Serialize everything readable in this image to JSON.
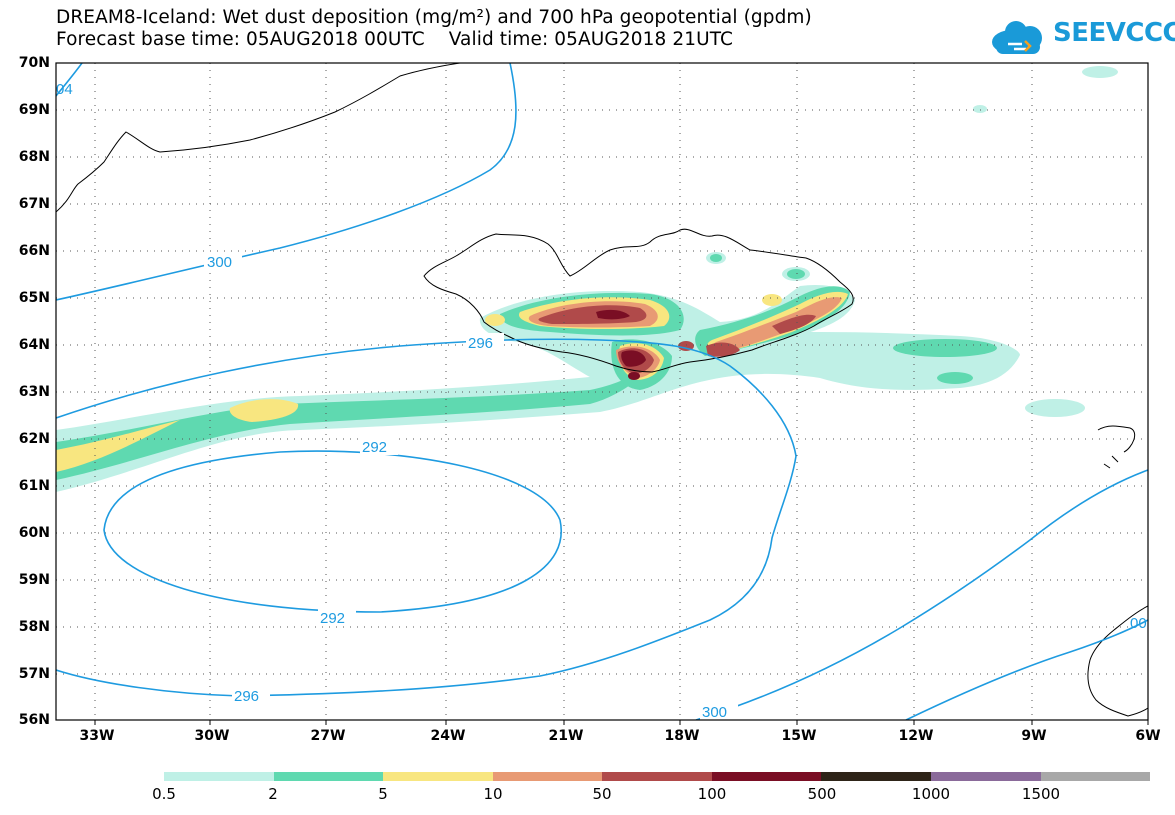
{
  "header": {
    "title_line1": "DREAM8-Iceland: Wet dust deposition (mg/m²) and 700 hPa geopotential (gpdm)",
    "title_line2": "Forecast base time: 05AUG2018 00UTC    Valid time: 05AUG2018 21UTC"
  },
  "logo": {
    "text": "SEEVCCC",
    "icon": "cloud-icon",
    "color": "#1a9ad8"
  },
  "map": {
    "lat_labels": [
      "70N",
      "69N",
      "68N",
      "67N",
      "66N",
      "65N",
      "64N",
      "63N",
      "62N",
      "61N",
      "60N",
      "59N",
      "58N",
      "57N",
      "56N"
    ],
    "lon_labels": [
      "33W",
      "30W",
      "27W",
      "24W",
      "21W",
      "18W",
      "15W",
      "12W",
      "9W",
      "6W"
    ],
    "contour_labels": [
      "300",
      "296",
      "292",
      "292",
      "296",
      "300",
      "04",
      "00"
    ],
    "contour_color": "#1e9be0",
    "coastline_color": "#000000",
    "grid_style": "dotted"
  },
  "legend": {
    "colors": [
      "#bff0e6",
      "#5fd9b0",
      "#f8e680",
      "#e89a74",
      "#b04a4a",
      "#7a0e24",
      "#2e2418",
      "#8a6a9a",
      "#a8a8a8"
    ],
    "labels": [
      "0.5",
      "2",
      "5",
      "10",
      "50",
      "100",
      "500",
      "1000",
      "1500"
    ]
  }
}
